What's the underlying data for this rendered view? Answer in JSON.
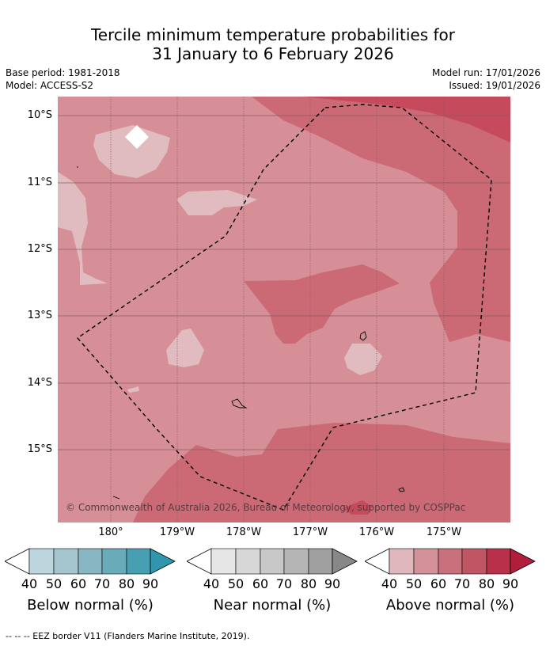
{
  "title_line1": "Tercile minimum temperature probabilities for",
  "title_line2": "31 January to 6 February 2026",
  "base_period": "Base period: 1981-2018",
  "model": "Model: ACCESS-S2",
  "model_run": "Model run: 17/01/2026",
  "issued": "Issued: 19/01/2026",
  "lat_labels": [
    "10°S",
    "11°S",
    "12°S",
    "13°S",
    "14°S",
    "15°S"
  ],
  "lon_labels": [
    "180°",
    "179°W",
    "178°W",
    "177°W",
    "176°W",
    "175°W"
  ],
  "copyright": "© Commonwealth of Australia 2026, Bureau of Meteorology, supported by COSPPac",
  "legends": [
    {
      "title": "Below normal (%)",
      "ticks": [
        "40",
        "50",
        "60",
        "70",
        "80",
        "90"
      ],
      "colors": [
        "#bdd5dd",
        "#a5c6cf",
        "#88b6c3",
        "#6aabba",
        "#47a0b2",
        "#2f96ad"
      ]
    },
    {
      "title": "Near normal (%)",
      "ticks": [
        "40",
        "50",
        "60",
        "70",
        "80",
        "90"
      ],
      "colors": [
        "#e6e6e6",
        "#d7d7d7",
        "#c8c8c8",
        "#b5b5b5",
        "#a0a0a0",
        "#888888"
      ]
    },
    {
      "title": "Above normal (%)",
      "ticks": [
        "40",
        "50",
        "60",
        "70",
        "80",
        "90"
      ],
      "colors": [
        "#e0b7bc",
        "#d3919a",
        "#c8707b",
        "#c05663",
        "#b9304b",
        "#b01e3c"
      ]
    }
  ],
  "eez_note": "--  --  -- EEZ border V11 (Flanders Marine Institute, 2019).",
  "colors": {
    "above_40": "#e0bcc1",
    "above_50": "#d68f97",
    "above_60": "#cb6a75",
    "above_70": "#c44a5c"
  }
}
